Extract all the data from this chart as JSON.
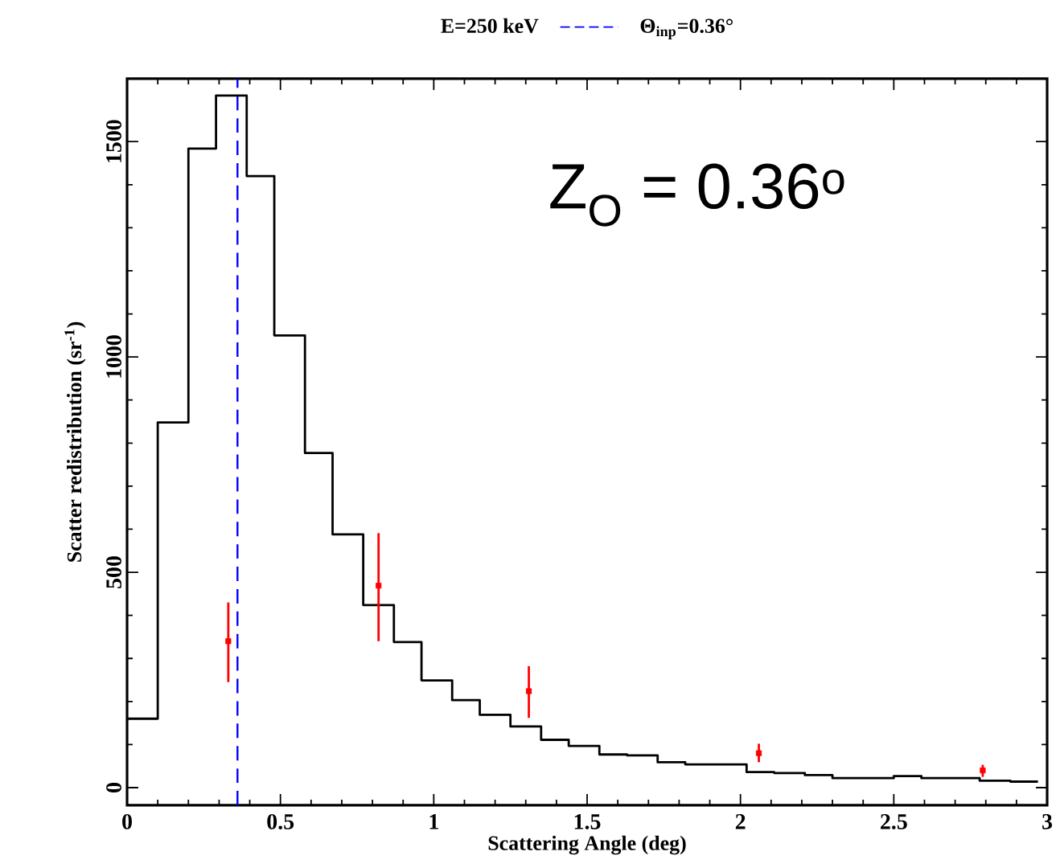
{
  "chart_data": {
    "type": "histogram",
    "title": "E=250 keV",
    "xlabel": "Scattering Angle (deg)",
    "ylabel": "Scatter redistribution (sr$^{-1}$)",
    "annotations": [
      "Z$_{O}$ = 0.36$^{o}$"
    ],
    "xlim": [
      0,
      3
    ],
    "ylim": [
      -41,
      1646
    ],
    "xticks": [
      0,
      0.5,
      1,
      1.5,
      2,
      2.5,
      3
    ],
    "yticks": [
      0,
      500,
      1000,
      1500
    ],
    "grid": false,
    "ref_lines": [
      {
        "axis": "x",
        "value": 0.36,
        "label": "Θ$_{inp}$=0.36°",
        "color": "#0000ff",
        "line_style": "dashed"
      }
    ],
    "series": [
      {
        "color": "#000000",
        "bins": [
          0.0,
          0.1,
          0.2,
          0.29,
          0.39,
          0.48,
          0.58,
          0.67,
          0.77,
          0.87,
          0.96,
          1.06,
          1.15,
          1.25,
          1.35,
          1.44,
          1.54,
          1.63,
          1.73,
          1.82,
          1.92,
          2.02,
          2.11,
          2.21,
          2.3,
          2.4,
          2.5,
          2.59,
          2.69,
          2.78,
          2.88,
          2.97
        ],
        "values": [
          160,
          848,
          1484,
          1607,
          1420,
          1050,
          777,
          588,
          424,
          338,
          249,
          203,
          169,
          142,
          111,
          97,
          77,
          75,
          59,
          54,
          54,
          36,
          34,
          29,
          22,
          22,
          27,
          22,
          22,
          16,
          14
        ]
      },
      {
        "type": "scatter",
        "color": "#ff0000",
        "marker": "square",
        "x": [
          0.33,
          0.82,
          1.31,
          2.06,
          2.79
        ],
        "values": [
          340,
          469,
          224,
          80,
          40
        ],
        "errors": [
          [
            245,
            430
          ],
          [
            340,
            591
          ],
          [
            162,
            282
          ],
          [
            59,
            102
          ],
          [
            25,
            53
          ]
        ]
      }
    ]
  }
}
